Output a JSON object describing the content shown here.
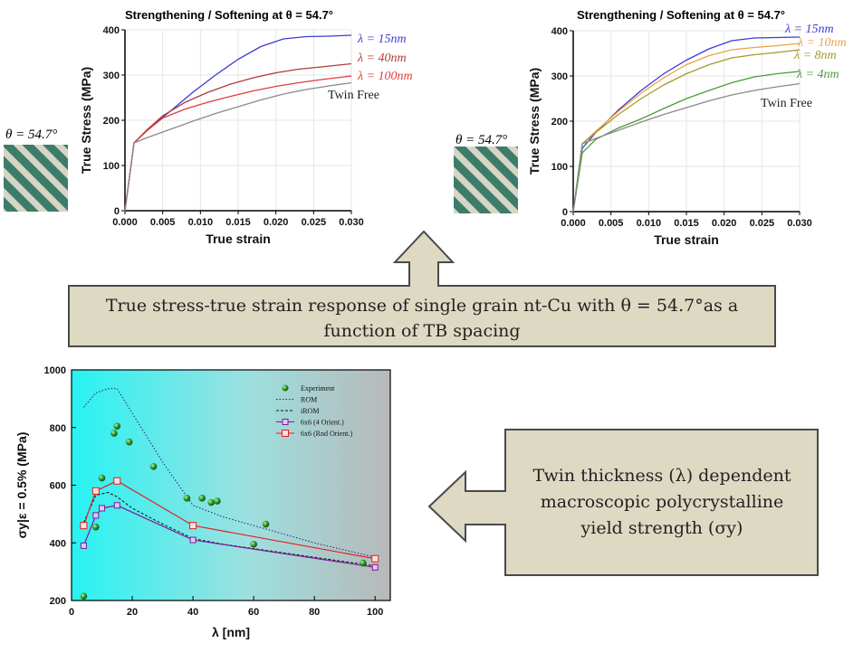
{
  "top_left": {
    "title": "Strengthening / Softening at θ = 54.7°",
    "inset_label": "θ = 54.7°",
    "curve_labels": [
      "λ = 15nm",
      "λ = 40nm",
      "λ = 100nm",
      "Twin Free"
    ]
  },
  "top_right": {
    "title": "Strengthening / Softening at θ = 54.7°",
    "inset_label": "θ = 54.7°",
    "curve_labels": [
      "λ = 15nm",
      "λ = 10nm",
      "λ = 8nm",
      "λ = 4nm",
      "Twin Free"
    ]
  },
  "callout_top": {
    "line1": "True stress-true strain response of single grain nt-Cu with θ = 54.7°as a",
    "line2": "function of TB spacing"
  },
  "callout_right": {
    "line1": "Twin thickness (λ) dependent",
    "line2": "macroscopic polycrystalline",
    "line3": "yield strength (σy)"
  },
  "colors": {
    "blue": "#3b3bd6",
    "darkred": "#b03a3a",
    "red": "#e23b3b",
    "gray": "#8a8a8a",
    "orange": "#f0a040",
    "olive": "#a59a2c",
    "green": "#4d9a3a",
    "callout_fill": "#ddd9c3",
    "callout_stroke": "#4a4a4a"
  },
  "chart_data": [
    {
      "type": "line",
      "xlabel": "True strain",
      "ylabel": "True Stress (MPa)",
      "xlim": [
        0,
        0.03
      ],
      "ylim": [
        0,
        400
      ],
      "xticks": [
        "0.000",
        "0.005",
        "0.010",
        "0.015",
        "0.020",
        "0.025",
        "0.030"
      ],
      "yticks": [
        "0",
        "100",
        "200",
        "300",
        "400"
      ],
      "series": [
        {
          "name": "λ = 15nm",
          "x": [
            0,
            0.0012,
            0.003,
            0.006,
            0.009,
            0.012,
            0.015,
            0.018,
            0.021,
            0.024,
            0.027,
            0.03
          ],
          "y": [
            0,
            150,
            180,
            220,
            262,
            300,
            335,
            363,
            380,
            385,
            386,
            388
          ]
        },
        {
          "name": "λ = 40nm",
          "x": [
            0,
            0.0012,
            0.003,
            0.005,
            0.008,
            0.011,
            0.014,
            0.017,
            0.02,
            0.023,
            0.026,
            0.03
          ],
          "y": [
            0,
            150,
            180,
            210,
            240,
            262,
            280,
            294,
            305,
            313,
            318,
            325
          ]
        },
        {
          "name": "λ = 100nm",
          "x": [
            0,
            0.0012,
            0.003,
            0.005,
            0.008,
            0.011,
            0.014,
            0.017,
            0.02,
            0.023,
            0.026,
            0.03
          ],
          "y": [
            0,
            150,
            178,
            205,
            225,
            240,
            253,
            265,
            275,
            283,
            290,
            298
          ]
        },
        {
          "name": "Twin Free",
          "x": [
            0,
            0.0012,
            0.003,
            0.006,
            0.009,
            0.012,
            0.015,
            0.018,
            0.021,
            0.024,
            0.027,
            0.03
          ],
          "y": [
            0,
            150,
            162,
            180,
            198,
            215,
            230,
            245,
            258,
            268,
            276,
            283
          ]
        }
      ]
    },
    {
      "type": "line",
      "xlabel": "True strain",
      "ylabel": "True Stress (MPa)",
      "xlim": [
        0,
        0.03
      ],
      "ylim": [
        0,
        400
      ],
      "xticks": [
        "0.000",
        "0.005",
        "0.010",
        "0.015",
        "0.020",
        "0.025",
        "0.030"
      ],
      "yticks": [
        "0",
        "100",
        "200",
        "300",
        "400"
      ],
      "series": [
        {
          "name": "λ = 15nm",
          "x": [
            0,
            0.0012,
            0.003,
            0.006,
            0.009,
            0.012,
            0.015,
            0.018,
            0.021,
            0.024,
            0.027,
            0.03
          ],
          "y": [
            0,
            140,
            175,
            225,
            268,
            305,
            335,
            360,
            378,
            384,
            385,
            386
          ]
        },
        {
          "name": "λ = 10nm",
          "x": [
            0,
            0.0012,
            0.003,
            0.006,
            0.009,
            0.012,
            0.015,
            0.018,
            0.021,
            0.024,
            0.027,
            0.03
          ],
          "y": [
            0,
            150,
            178,
            222,
            262,
            296,
            325,
            345,
            358,
            363,
            367,
            372
          ]
        },
        {
          "name": "λ = 8nm",
          "x": [
            0,
            0.0012,
            0.003,
            0.006,
            0.009,
            0.012,
            0.015,
            0.018,
            0.021,
            0.024,
            0.027,
            0.03
          ],
          "y": [
            0,
            150,
            175,
            215,
            250,
            280,
            305,
            325,
            340,
            347,
            352,
            358
          ]
        },
        {
          "name": "λ = 4nm",
          "x": [
            0,
            0.0012,
            0.003,
            0.006,
            0.009,
            0.012,
            0.015,
            0.018,
            0.021,
            0.024,
            0.027,
            0.03
          ],
          "y": [
            0,
            130,
            160,
            185,
            205,
            228,
            250,
            268,
            285,
            298,
            305,
            310
          ]
        },
        {
          "name": "Twin Free",
          "x": [
            0,
            0.0012,
            0.003,
            0.006,
            0.009,
            0.012,
            0.015,
            0.018,
            0.021,
            0.024,
            0.027,
            0.03
          ],
          "y": [
            0,
            150,
            162,
            180,
            198,
            215,
            230,
            245,
            258,
            268,
            276,
            283
          ]
        }
      ]
    },
    {
      "type": "scatter",
      "xlabel": "λ [nm]",
      "ylabel": "σy|ε = 0.5% (MPa)",
      "xlim": [
        0,
        105
      ],
      "ylim": [
        200,
        1000
      ],
      "xticks": [
        "0",
        "20",
        "40",
        "60",
        "80",
        "100"
      ],
      "yticks": [
        "200",
        "400",
        "600",
        "800",
        "1000"
      ],
      "legend_placement": "top-right",
      "legend": [
        "Experiment",
        "ROM",
        "iROM",
        "6x6 (4 Orient.)",
        "6x6 (Rnd Orient.)"
      ],
      "experiment": {
        "x": [
          4,
          8,
          10,
          14,
          15,
          19,
          27,
          38,
          43,
          46,
          48,
          64,
          60,
          96
        ],
        "y": [
          215,
          455,
          625,
          780,
          805,
          750,
          665,
          555,
          555,
          540,
          545,
          465,
          395,
          330
        ]
      },
      "rom": {
        "x": [
          4,
          8,
          12,
          15,
          20,
          30,
          40,
          50,
          60,
          70,
          80,
          90,
          100
        ],
        "y": [
          870,
          920,
          935,
          935,
          850,
          680,
          530,
          490,
          460,
          430,
          400,
          375,
          350
        ]
      },
      "irom": {
        "x": [
          4,
          8,
          12,
          15,
          20,
          30,
          40,
          50,
          60,
          70,
          80,
          90,
          100
        ],
        "y": [
          470,
          565,
          575,
          560,
          520,
          465,
          415,
          395,
          380,
          365,
          350,
          335,
          320
        ]
      },
      "orient4": {
        "x": [
          4,
          8,
          10,
          15,
          40,
          100
        ],
        "y": [
          390,
          495,
          520,
          530,
          410,
          315
        ]
      },
      "rnd": {
        "x": [
          4,
          8,
          15,
          40,
          100
        ],
        "y": [
          460,
          580,
          615,
          460,
          345
        ]
      }
    }
  ]
}
